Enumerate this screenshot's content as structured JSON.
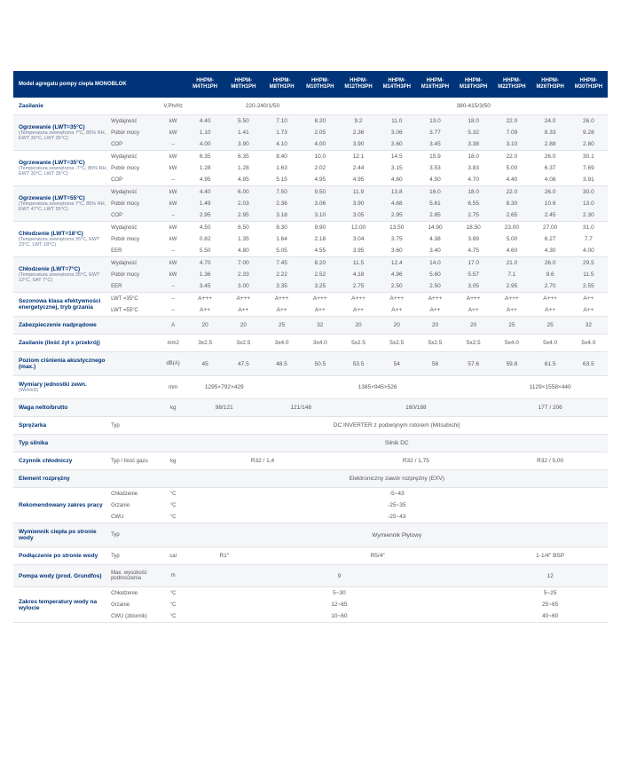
{
  "header": {
    "title": "Model agregatu pompy ciepła MONOBLOK",
    "models": [
      "HHPM-M4TH1PH",
      "HHPM-M6TH1PH",
      "HHPM-M8TH1PH",
      "HHPM-M10TH1PH",
      "HHPM-M12TH3PH",
      "HHPM-M14TH3PH",
      "HHPM-M16TH3PH",
      "HHPM-M18TH3PH",
      "HHPM-M22TH3PH",
      "HHPM-M26TH3PH",
      "HHPM-M30TH3PH"
    ]
  },
  "colors": {
    "headerBg": "#003478",
    "labelColor": "#003478",
    "stripe": "#f5f6f8",
    "border": "#e0e3e8"
  },
  "zasilanie": {
    "label": "Zasilanie",
    "unit": "V,Ph/Hz",
    "group1": "220-240/1/50",
    "group2": "380-415/3/50"
  },
  "ogrzew35a": {
    "label": "Ogrzewanie (LWT=35°C)",
    "sub": "(Temperatura zewnętrzna 7°C, 85% RH, EWT 30°C, LWT 35°C)",
    "r1": {
      "l": "Wydajność",
      "u": "kW",
      "v": [
        "4.40",
        "5.50",
        "7.10",
        "8.20",
        "9.2",
        "11.0",
        "13.0",
        "18.0",
        "22.0",
        "24.0",
        "26.0"
      ]
    },
    "r2": {
      "l": "Pobór mocy",
      "u": "kW",
      "v": [
        "1.10",
        "1.41",
        "1.73",
        "2.05",
        "2.36",
        "3.06",
        "3.77",
        "5.32",
        "7.09",
        "8.33",
        "9.28"
      ]
    },
    "r3": {
      "l": "COP",
      "u": "–",
      "v": [
        "4.00",
        "3.90",
        "4.10",
        "4.00",
        "3.90",
        "3.60",
        "3.45",
        "3.38",
        "3.10",
        "2.88",
        "2.80"
      ]
    }
  },
  "ogrzew35b": {
    "label": "Ogrzewanie (LWT=35°C)",
    "sub": "(Temperatura zewnętrzna -7°C, 85% RH, EWT 30°C, LWT 35°C)",
    "r1": {
      "l": "Wydajność",
      "u": "kW",
      "v": [
        "6.35",
        "6.35",
        "8.40",
        "10.0",
        "12.1",
        "14.5",
        "15.9",
        "18.0",
        "22.0",
        "26.0",
        "30.1"
      ]
    },
    "r2": {
      "l": "Pobór mocy",
      "u": "kW",
      "v": [
        "1.28",
        "1.28",
        "1.63",
        "2.02",
        "2.44",
        "3.15",
        "3.53",
        "3.83",
        "5.00",
        "6.37",
        "7.69"
      ]
    },
    "r3": {
      "l": "COP",
      "u": "–",
      "v": [
        "4.95",
        "4.95",
        "5.15",
        "4.95",
        "4.95",
        "4.60",
        "4.50",
        "4.70",
        "4.40",
        "4.08",
        "3.91"
      ]
    }
  },
  "ogrzew55": {
    "label": "Ogrzewanie (LWT=55°C)",
    "sub": "(Temperatura zewnętrzna 7°C, 85% RH, EWT 47°C, LWT 55°C)",
    "r1": {
      "l": "Wydajność",
      "u": "kW",
      "v": [
        "4.40",
        "6.00",
        "7.50",
        "9.50",
        "11.9",
        "13.8",
        "16.0",
        "18.0",
        "22.0",
        "26.0",
        "30.0"
      ]
    },
    "r2": {
      "l": "Pobór mocy",
      "u": "kW",
      "v": [
        "1.49",
        "2.03",
        "2.36",
        "3.06",
        "3.90",
        "4.68",
        "5.61",
        "6.55",
        "8.30",
        "10.6",
        "13.0"
      ]
    },
    "r3": {
      "l": "COP",
      "u": "–",
      "v": [
        "2.95",
        "2.95",
        "3.18",
        "3.10",
        "3.05",
        "2.95",
        "2.85",
        "2.75",
        "2.65",
        "2.45",
        "2.30"
      ]
    }
  },
  "chlod18": {
    "label": "Chłodzenie (LWT=18°C)",
    "sub": "(Temperatura zewnętrzna 35°C, EWT 23°C, LWT 18°C)",
    "r1": {
      "l": "Wydajność",
      "u": "kW",
      "v": [
        "4.50",
        "6.50",
        "8.30",
        "9.90",
        "12.00",
        "13.50",
        "14.90",
        "18.50",
        "23.00",
        "27.00",
        "31.0"
      ]
    },
    "r2": {
      "l": "Pobór mocy",
      "u": "kW",
      "v": [
        "0.82",
        "1.35",
        "1.64",
        "2.18",
        "3.04",
        "3.75",
        "4.38",
        "3.89",
        "5.00",
        "6.27",
        "7.7"
      ]
    },
    "r3": {
      "l": "EER",
      "u": "–",
      "v": [
        "5.50",
        "4.80",
        "5.05",
        "4.55",
        "3.95",
        "3.60",
        "3.40",
        "4.75",
        "4.60",
        "4.30",
        "4.00"
      ]
    }
  },
  "chlod7": {
    "label": "Chłodzenie (LWT=7°C)",
    "sub": "(Temperatura zewnętrzna 35°C, EWT 12°C, SAT 7°C)",
    "r1": {
      "l": "Wydajność",
      "u": "kW",
      "v": [
        "4.70",
        "7.00",
        "7.45",
        "8.20",
        "11.5",
        "12.4",
        "14.0",
        "17.0",
        "21.0",
        "26.0",
        "29.5"
      ]
    },
    "r2": {
      "l": "Pobór mocy",
      "u": "kW",
      "v": [
        "1.36",
        "2.33",
        "2.22",
        "2.52",
        "4.18",
        "4.96",
        "5.60",
        "5.57",
        "7.1",
        "9.6",
        "11.5"
      ]
    },
    "r3": {
      "l": "EER",
      "u": "–",
      "v": [
        "3.45",
        "3.00",
        "3.35",
        "3.25",
        "2.75",
        "2.50",
        "2.50",
        "3.05",
        "2.95",
        "2.70",
        "2.55"
      ]
    }
  },
  "sezon": {
    "label": "Sezonowa klasa efektywności energetycznej, tryb grzania",
    "r1": {
      "l": "LWT =35°C",
      "u": "–",
      "v": [
        "A+++",
        "A+++",
        "A+++",
        "A+++",
        "A+++",
        "A+++",
        "A+++",
        "A+++",
        "A+++",
        "A+++",
        "A++"
      ]
    },
    "r2": {
      "l": "LWT =55°C",
      "u": "–",
      "v": [
        "A++",
        "A++",
        "A++",
        "A++",
        "A++",
        "A++",
        "A++",
        "A++",
        "A++",
        "A++",
        "A++"
      ]
    }
  },
  "zabez": {
    "label": "Zabezpieczenie nadprądowe",
    "unit": "A",
    "v": [
      "20",
      "20",
      "25",
      "32",
      "20",
      "20",
      "20",
      "20",
      "25",
      "25",
      "32"
    ]
  },
  "zasil2": {
    "label": "Zasilanie (ilość żył x przekrój)",
    "unit": "mm2",
    "v": [
      "3x2.5",
      "3x2.5",
      "3x4.0",
      "3x4.0",
      "5x2.5",
      "5x2.5",
      "5x2.5",
      "5x2.5",
      "5x4.0",
      "5x4.0",
      "5x4.0"
    ]
  },
  "cisn": {
    "label": "Poziom ciśnienia akustycznego (max.)",
    "unit": "dB(A)",
    "v": [
      "45",
      "47.5",
      "48.5",
      "50.5",
      "53.5",
      "54",
      "58",
      "57.6",
      "59.8",
      "61.5",
      "63.5"
    ]
  },
  "wym": {
    "label": "Wymiary jednostki zewn.",
    "sub": "(WxHxD)",
    "unit": "mm",
    "g1": "1295×792×429",
    "g2": "1385×945×526",
    "g3": "1129×1558×440"
  },
  "waga": {
    "label": "Waga netto/brutto",
    "unit": "kg",
    "g1": "98/121",
    "g2": "121/148",
    "g3": "160/188",
    "g4": "177 / 206"
  },
  "sprez": {
    "label": "Sprężarka",
    "sub": "Typ",
    "val": "DC INVERTER z podwójnym rotorem (Mitsubishi)"
  },
  "silnik": {
    "label": "Typ silnika",
    "val": "Silnik DC"
  },
  "czyn": {
    "label": "Czynnik chłodniczy",
    "sub": "Typ / Ilość gazu",
    "unit": "kg",
    "g1": "R32 / 1,4",
    "g2": "R32 / 1,75",
    "g3": "R32 / 5,00"
  },
  "elem": {
    "label": "Element rozprężny",
    "val": "Elektroniczny zawór rozprężny (EXV)"
  },
  "zakres": {
    "label": "Rekomendowany zakres pracy",
    "r1": {
      "l": "Chłodzenie",
      "u": "°C",
      "v": "-5~43"
    },
    "r2": {
      "l": "Grzanie",
      "u": "°C",
      "v": "-25~35"
    },
    "r3": {
      "l": "CWU",
      "u": "°C",
      "v": "-25~43"
    }
  },
  "wymien": {
    "label": "Wymiennik ciepła po stronie wody",
    "sub": "Typ",
    "val": "Wymiennik Płytowy"
  },
  "podl": {
    "label": "Podłączenie po stronie wody",
    "sub": "Typ",
    "unit": "cal",
    "g1": "R1″",
    "g2": "R5/4″",
    "g3": "1-1/4″ BSP"
  },
  "pompa": {
    "label": "Pompa wody (prod. Grundfos)",
    "sub": "Max. wysokość podnoszenia",
    "unit": "m",
    "g1": "9",
    "g2": "12"
  },
  "temps": {
    "label": "Zakres temperatury wody na wylocie",
    "r1": {
      "l": "Chłodzenie",
      "u": "°C",
      "v1": "5~30",
      "v2": "5~25"
    },
    "r2": {
      "l": "Grzanie",
      "u": "°C",
      "v1": "12~65",
      "v2": "25~65"
    },
    "r3": {
      "l": "CWU (zbiornik)",
      "u": "°C",
      "v1": "10~60",
      "v2": "40~60"
    }
  }
}
